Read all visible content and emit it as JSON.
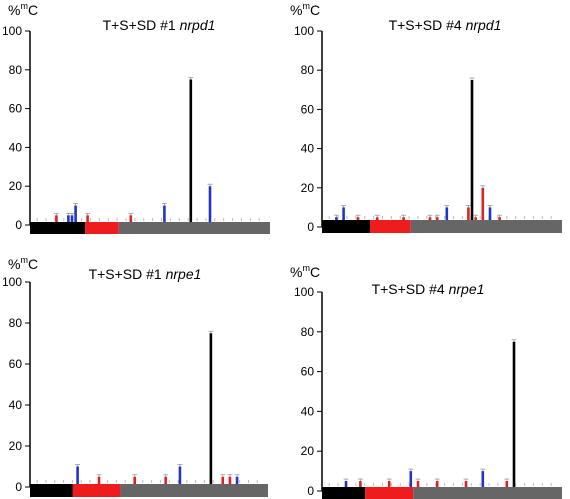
{
  "chart_data": [
    {
      "type": "bar",
      "title_prefix": "T+S+SD #1 ",
      "title_gene": "nrpd1",
      "ylabel_main": "%",
      "ylabel_sup": "m",
      "ylabel_end": "C",
      "ylim": [
        0,
        100
      ],
      "yticks": [
        "0",
        "20",
        "40",
        "60",
        "80",
        "100"
      ],
      "x_range": [
        0,
        100
      ],
      "regions": [
        {
          "color": "#000000",
          "start": 0,
          "end": 23
        },
        {
          "color": "#ee1c1c",
          "start": 23,
          "end": 37
        },
        {
          "color": "#666666",
          "start": 37,
          "end": 100
        }
      ],
      "bars": [
        {
          "x": 11,
          "value": 5,
          "color": "#dd2222"
        },
        {
          "x": 16,
          "value": 5,
          "color": "#2233cc"
        },
        {
          "x": 17.5,
          "value": 5,
          "color": "#2233cc"
        },
        {
          "x": 19,
          "value": 10,
          "color": "#2233cc"
        },
        {
          "x": 24,
          "value": 5,
          "color": "#dd2222"
        },
        {
          "x": 42,
          "value": 5,
          "color": "#dd2222"
        },
        {
          "x": 56,
          "value": 10,
          "color": "#2233cc"
        },
        {
          "x": 67,
          "value": 75,
          "color": "#000000"
        },
        {
          "x": 75,
          "value": 20,
          "color": "#2233cc"
        }
      ]
    },
    {
      "type": "bar",
      "title_prefix": "T+S+SD #4 ",
      "title_gene": "nrpd1",
      "ylabel_main": "%",
      "ylabel_sup": "m",
      "ylabel_end": "C",
      "ylim": [
        0,
        100
      ],
      "yticks": [
        "0",
        "20",
        "40",
        "60",
        "80",
        "100"
      ],
      "x_range": [
        0,
        100
      ],
      "regions": [
        {
          "color": "#000000",
          "start": 0,
          "end": 20
        },
        {
          "color": "#ee1c1c",
          "start": 20,
          "end": 37
        },
        {
          "color": "#666666",
          "start": 37,
          "end": 100
        }
      ],
      "bars": [
        {
          "x": 6,
          "value": 5,
          "color": "#2233cc"
        },
        {
          "x": 9,
          "value": 10,
          "color": "#2233cc"
        },
        {
          "x": 15,
          "value": 5,
          "color": "#dd2222"
        },
        {
          "x": 23,
          "value": 5,
          "color": "#dd2222"
        },
        {
          "x": 34,
          "value": 5,
          "color": "#dd2222"
        },
        {
          "x": 45,
          "value": 5,
          "color": "#dd2222"
        },
        {
          "x": 48,
          "value": 5,
          "color": "#dd2222"
        },
        {
          "x": 52,
          "value": 10,
          "color": "#2233cc"
        },
        {
          "x": 61,
          "value": 10,
          "color": "#dd2222"
        },
        {
          "x": 62.5,
          "value": 75,
          "color": "#000000"
        },
        {
          "x": 64,
          "value": 5,
          "color": "#dd2222"
        },
        {
          "x": 67,
          "value": 20,
          "color": "#dd2222"
        },
        {
          "x": 70,
          "value": 10,
          "color": "#2233cc"
        },
        {
          "x": 74,
          "value": 5,
          "color": "#dd2222"
        }
      ]
    },
    {
      "type": "bar",
      "title_prefix": "T+S+SD #1 ",
      "title_gene": "nrpe1",
      "ylabel_main": "%",
      "ylabel_sup": "m",
      "ylabel_end": "C",
      "ylim": [
        0,
        100
      ],
      "yticks": [
        "0",
        "20",
        "40",
        "60",
        "80",
        "100"
      ],
      "x_range": [
        0,
        100
      ],
      "regions": [
        {
          "color": "#000000",
          "start": 0,
          "end": 18
        },
        {
          "color": "#ee1c1c",
          "start": 18,
          "end": 38
        },
        {
          "color": "#666666",
          "start": 38,
          "end": 100
        }
      ],
      "bars": [
        {
          "x": 20,
          "value": 10,
          "color": "#2233cc"
        },
        {
          "x": 29,
          "value": 5,
          "color": "#dd2222"
        },
        {
          "x": 44,
          "value": 5,
          "color": "#dd2222"
        },
        {
          "x": 57,
          "value": 5,
          "color": "#dd2222"
        },
        {
          "x": 63,
          "value": 10,
          "color": "#2233cc"
        },
        {
          "x": 76,
          "value": 75,
          "color": "#000000"
        },
        {
          "x": 81,
          "value": 5,
          "color": "#dd2222"
        },
        {
          "x": 84,
          "value": 5,
          "color": "#dd2222"
        },
        {
          "x": 87,
          "value": 5,
          "color": "#2233cc"
        }
      ]
    },
    {
      "type": "bar",
      "title_prefix": "T+S+SD #4 ",
      "title_gene": "nrpe1",
      "ylabel_main": "%",
      "ylabel_sup": "m",
      "ylabel_end": "C",
      "ylim": [
        0,
        100
      ],
      "yticks": [
        "0",
        "20",
        "40",
        "60",
        "80",
        "100"
      ],
      "x_range": [
        0,
        100
      ],
      "regions": [
        {
          "color": "#000000",
          "start": 0,
          "end": 18
        },
        {
          "color": "#ee1c1c",
          "start": 18,
          "end": 38
        },
        {
          "color": "#666666",
          "start": 38,
          "end": 100
        }
      ],
      "bars": [
        {
          "x": 10,
          "value": 5,
          "color": "#2233cc"
        },
        {
          "x": 16,
          "value": 5,
          "color": "#dd2222"
        },
        {
          "x": 28,
          "value": 5,
          "color": "#dd2222"
        },
        {
          "x": 37,
          "value": 10,
          "color": "#2233cc"
        },
        {
          "x": 40,
          "value": 5,
          "color": "#dd2222"
        },
        {
          "x": 48,
          "value": 5,
          "color": "#dd2222"
        },
        {
          "x": 60,
          "value": 5,
          "color": "#dd2222"
        },
        {
          "x": 67,
          "value": 10,
          "color": "#2233cc"
        },
        {
          "x": 77,
          "value": 5,
          "color": "#dd2222"
        },
        {
          "x": 80,
          "value": 75,
          "color": "#000000"
        }
      ]
    }
  ]
}
